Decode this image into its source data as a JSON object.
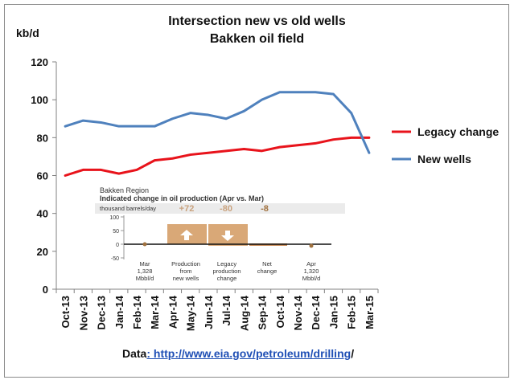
{
  "chart_data": {
    "type": "line",
    "title": "Intersection new vs old wells",
    "subtitle": "Bakken oil field",
    "ylabel": "kb/d",
    "ylim": [
      0,
      120
    ],
    "yticks": [
      0,
      20,
      40,
      60,
      80,
      100,
      120
    ],
    "grid": false,
    "legend_position": "right",
    "categories": [
      "Oct-13",
      "Nov-13",
      "Dec-13",
      "Jan-14",
      "Feb-14",
      "Mar-14",
      "Apr-14",
      "May-14",
      "Jun-14",
      "Jul-14",
      "Aug-14",
      "Sep-14",
      "Oct-14",
      "Nov-14",
      "Dec-14",
      "Jan-15",
      "Feb-15",
      "Mar-15"
    ],
    "series": [
      {
        "name": "Legacy change",
        "color": "#e8131b",
        "values": [
          60,
          63,
          63,
          61,
          63,
          68,
          69,
          71,
          72,
          73,
          74,
          73,
          75,
          76,
          77,
          79,
          80,
          80
        ]
      },
      {
        "name": "New wells",
        "color": "#4f81bd",
        "values": [
          86,
          89,
          88,
          86,
          86,
          86,
          90,
          93,
          92,
          90,
          94,
          100,
          104,
          104,
          104,
          103,
          93,
          72
        ]
      }
    ],
    "source_prefix": "Data",
    "source_link": ": http://www.eia.gov/petroleum/drilling",
    "source_suffix": "/"
  },
  "inset": {
    "region": "Bakken Region",
    "heading": "Indicated change in oil production (Apr vs. Mar)",
    "units": "thousand barrels/day",
    "yticks": [
      "100",
      "50",
      "0",
      "-50"
    ],
    "values": [
      {
        "text": "+72",
        "color": "#c9a27e"
      },
      {
        "text": "-80",
        "color": "#c9a27e"
      },
      {
        "text": "-8",
        "color": "#a0713e"
      }
    ],
    "labels": [
      [
        "Mar",
        "1,328",
        "Mbbl/d"
      ],
      [
        "Production",
        "from",
        "new wells"
      ],
      [
        "Legacy",
        "production",
        "change"
      ],
      [
        "Net",
        "change"
      ],
      [
        "Apr",
        "1,320",
        "Mbbl/d"
      ]
    ]
  }
}
